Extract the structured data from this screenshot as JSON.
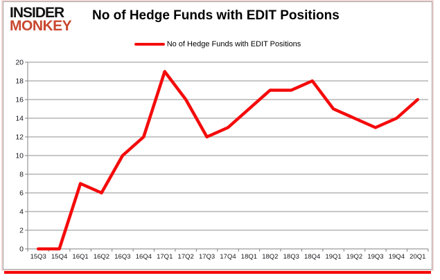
{
  "header": {
    "logo_line1": "INSIDER",
    "logo_line2": "MONKEY",
    "title": "No of Hedge Funds with EDIT Positions"
  },
  "legend": {
    "label": "No of Hedge Funds with EDIT Positions"
  },
  "colors": {
    "series_red": "#f40b0b",
    "logo_black": "#111111",
    "logo_red": "#c8472f",
    "gridline": "#8f8f8f",
    "axis_line": "#808080",
    "label_text": "#17171d",
    "card_border": "#a3a3a3",
    "shadow_red": "#f60606"
  },
  "chart_data": {
    "type": "line",
    "title": "No of Hedge Funds with EDIT Positions",
    "categories": [
      "15Q3",
      "15Q4",
      "16Q1",
      "16Q2",
      "16Q3",
      "16Q4",
      "17Q1",
      "17Q2",
      "17Q3",
      "17Q4",
      "18Q1",
      "18Q2",
      "18Q3",
      "18Q4",
      "19Q1",
      "19Q2",
      "19Q3",
      "19Q4",
      "20Q1"
    ],
    "series": [
      {
        "name": "No of Hedge Funds with EDIT Positions",
        "color": "#f40b0b",
        "values": [
          0,
          0,
          7,
          6,
          10,
          12,
          19,
          16,
          12,
          13,
          15,
          17,
          17,
          18,
          15,
          14,
          13,
          14,
          16
        ]
      }
    ],
    "ylim": [
      0,
      20
    ],
    "ytick_step": 2,
    "grid": true,
    "legend_position": "top-center",
    "xlabel": "",
    "ylabel": ""
  }
}
